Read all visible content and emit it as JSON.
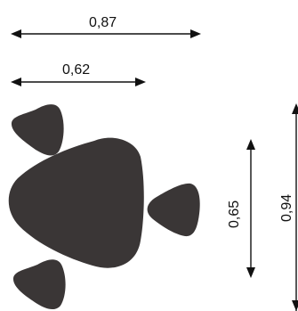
{
  "colors": {
    "shape_fill": "#3a3636",
    "dimension_lines": "#111111",
    "background": "#ffffff"
  },
  "dimensions": {
    "overall_width": "0,87",
    "main_width": "0,62",
    "main_height": "0,65",
    "overall_height": "0,94"
  }
}
